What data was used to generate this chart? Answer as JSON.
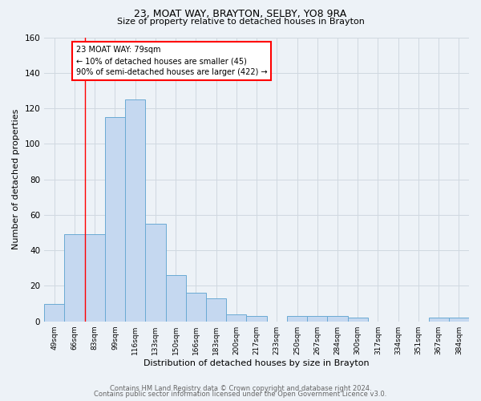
{
  "title1": "23, MOAT WAY, BRAYTON, SELBY, YO8 9RA",
  "title2": "Size of property relative to detached houses in Brayton",
  "xlabel": "Distribution of detached houses by size in Brayton",
  "ylabel": "Number of detached properties",
  "footer1": "Contains HM Land Registry data © Crown copyright and database right 2024.",
  "footer2": "Contains public sector information licensed under the Open Government Licence v3.0.",
  "bin_labels": [
    "49sqm",
    "66sqm",
    "83sqm",
    "99sqm",
    "116sqm",
    "133sqm",
    "150sqm",
    "166sqm",
    "183sqm",
    "200sqm",
    "217sqm",
    "233sqm",
    "250sqm",
    "267sqm",
    "284sqm",
    "300sqm",
    "317sqm",
    "334sqm",
    "351sqm",
    "367sqm",
    "384sqm"
  ],
  "bar_heights": [
    10,
    49,
    49,
    115,
    125,
    55,
    26,
    16,
    13,
    4,
    3,
    0,
    3,
    3,
    3,
    2,
    0,
    0,
    0,
    2,
    2
  ],
  "bar_color": "#c5d8f0",
  "bar_edge_color": "#6aaad4",
  "grid_color": "#d0d8e0",
  "bg_color": "#edf2f7",
  "red_line_x": 1.5,
  "annotation_line1": "23 MOAT WAY: 79sqm",
  "annotation_line2": "← 10% of detached houses are smaller (45)",
  "annotation_line3": "90% of semi-detached houses are larger (422) →",
  "annotation_box_color": "white",
  "annotation_box_edge": "red",
  "ylim": [
    0,
    160
  ],
  "yticks": [
    0,
    20,
    40,
    60,
    80,
    100,
    120,
    140,
    160
  ]
}
